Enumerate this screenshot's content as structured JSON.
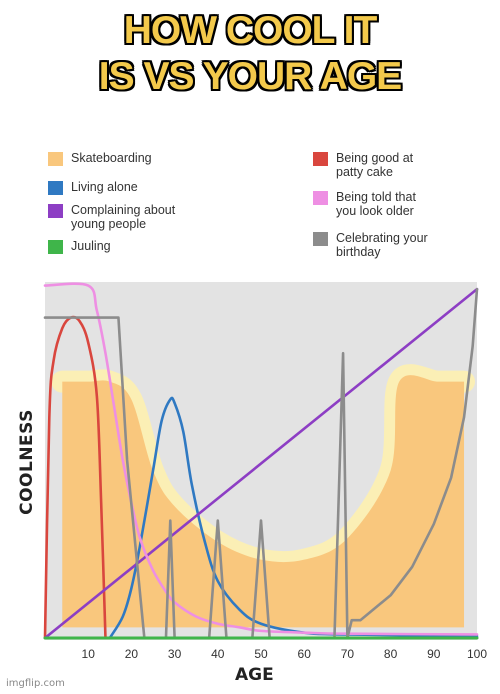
{
  "meme": {
    "title_line1": "HOW COOL IT",
    "title_line2": "IS VS YOUR AGE",
    "watermark": "imgflip.com"
  },
  "chart_data": {
    "type": "line",
    "xlabel": "AGE",
    "ylabel": "COOLNESS",
    "xlim": [
      0,
      100
    ],
    "ylim": [
      0,
      100
    ],
    "x_ticks": [
      10,
      20,
      30,
      40,
      50,
      60,
      70,
      80,
      90,
      100
    ],
    "grid": false,
    "legend_placement": "top",
    "series": [
      {
        "name": "Skateboarding",
        "kind": "band",
        "color": "#f9c77d",
        "halo_color": "#fbefb5",
        "x": [
          4,
          10,
          15,
          20,
          25,
          30,
          40,
          50,
          60,
          70,
          80,
          82,
          91,
          97
        ],
        "upper": [
          72,
          72,
          72,
          67,
          47,
          37,
          27,
          22,
          22,
          28,
          47,
          72,
          72,
          72
        ],
        "lower": [
          3,
          3,
          3,
          3,
          3,
          3,
          3,
          3,
          3,
          3,
          3,
          3,
          3,
          3
        ]
      },
      {
        "name": "Being good at\npatty cake",
        "color": "#d9463e",
        "x": [
          0,
          1,
          2,
          4,
          6,
          8,
          10,
          12,
          13,
          14
        ],
        "y": [
          0,
          62,
          78,
          87,
          90,
          89,
          83,
          68,
          38,
          0
        ]
      },
      {
        "name": "Living alone",
        "color": "#2f79c2",
        "x": [
          15,
          18,
          20,
          22,
          25,
          27,
          29,
          30,
          32,
          34,
          37,
          40,
          45,
          50,
          60,
          70,
          100
        ],
        "y": [
          0,
          6,
          14,
          26,
          47,
          61,
          67,
          66,
          58,
          43,
          27,
          16,
          8,
          4,
          1.5,
          1,
          0.5
        ]
      },
      {
        "name": "Complaining about\nyoung people",
        "color": "#8d3ec4",
        "x": [
          0,
          100
        ],
        "y": [
          0,
          98
        ]
      },
      {
        "name": "Being told that\nyou look older",
        "color": "#ee8fe3",
        "x": [
          0,
          10,
          12,
          14,
          16,
          18,
          20,
          22,
          25,
          28,
          30,
          35,
          40,
          45,
          50,
          60,
          70,
          100
        ],
        "y": [
          99,
          99,
          92,
          80,
          65,
          50,
          38,
          28,
          19,
          13,
          10,
          6,
          4,
          3,
          2,
          1.5,
          1.2,
          1
        ]
      },
      {
        "name": "Celebrating your\nbirthday",
        "color": "#8c8c8c",
        "x": [
          0,
          17,
          18,
          19,
          21,
          23,
          25,
          28,
          29,
          30,
          31,
          38,
          40,
          42,
          48,
          50,
          52,
          67,
          69,
          70,
          71,
          73,
          80,
          85,
          90,
          94,
          97,
          99,
          100
        ],
        "y": [
          90,
          90,
          70,
          50,
          25,
          0,
          0,
          0,
          33,
          0,
          0,
          0,
          33,
          0,
          0,
          33,
          0,
          0,
          80,
          0,
          5,
          5,
          12,
          20,
          32,
          45,
          62,
          82,
          98
        ]
      },
      {
        "name": "Juuling",
        "color": "#3fb54a",
        "x": [
          0,
          100
        ],
        "y": [
          0,
          0
        ]
      }
    ]
  }
}
